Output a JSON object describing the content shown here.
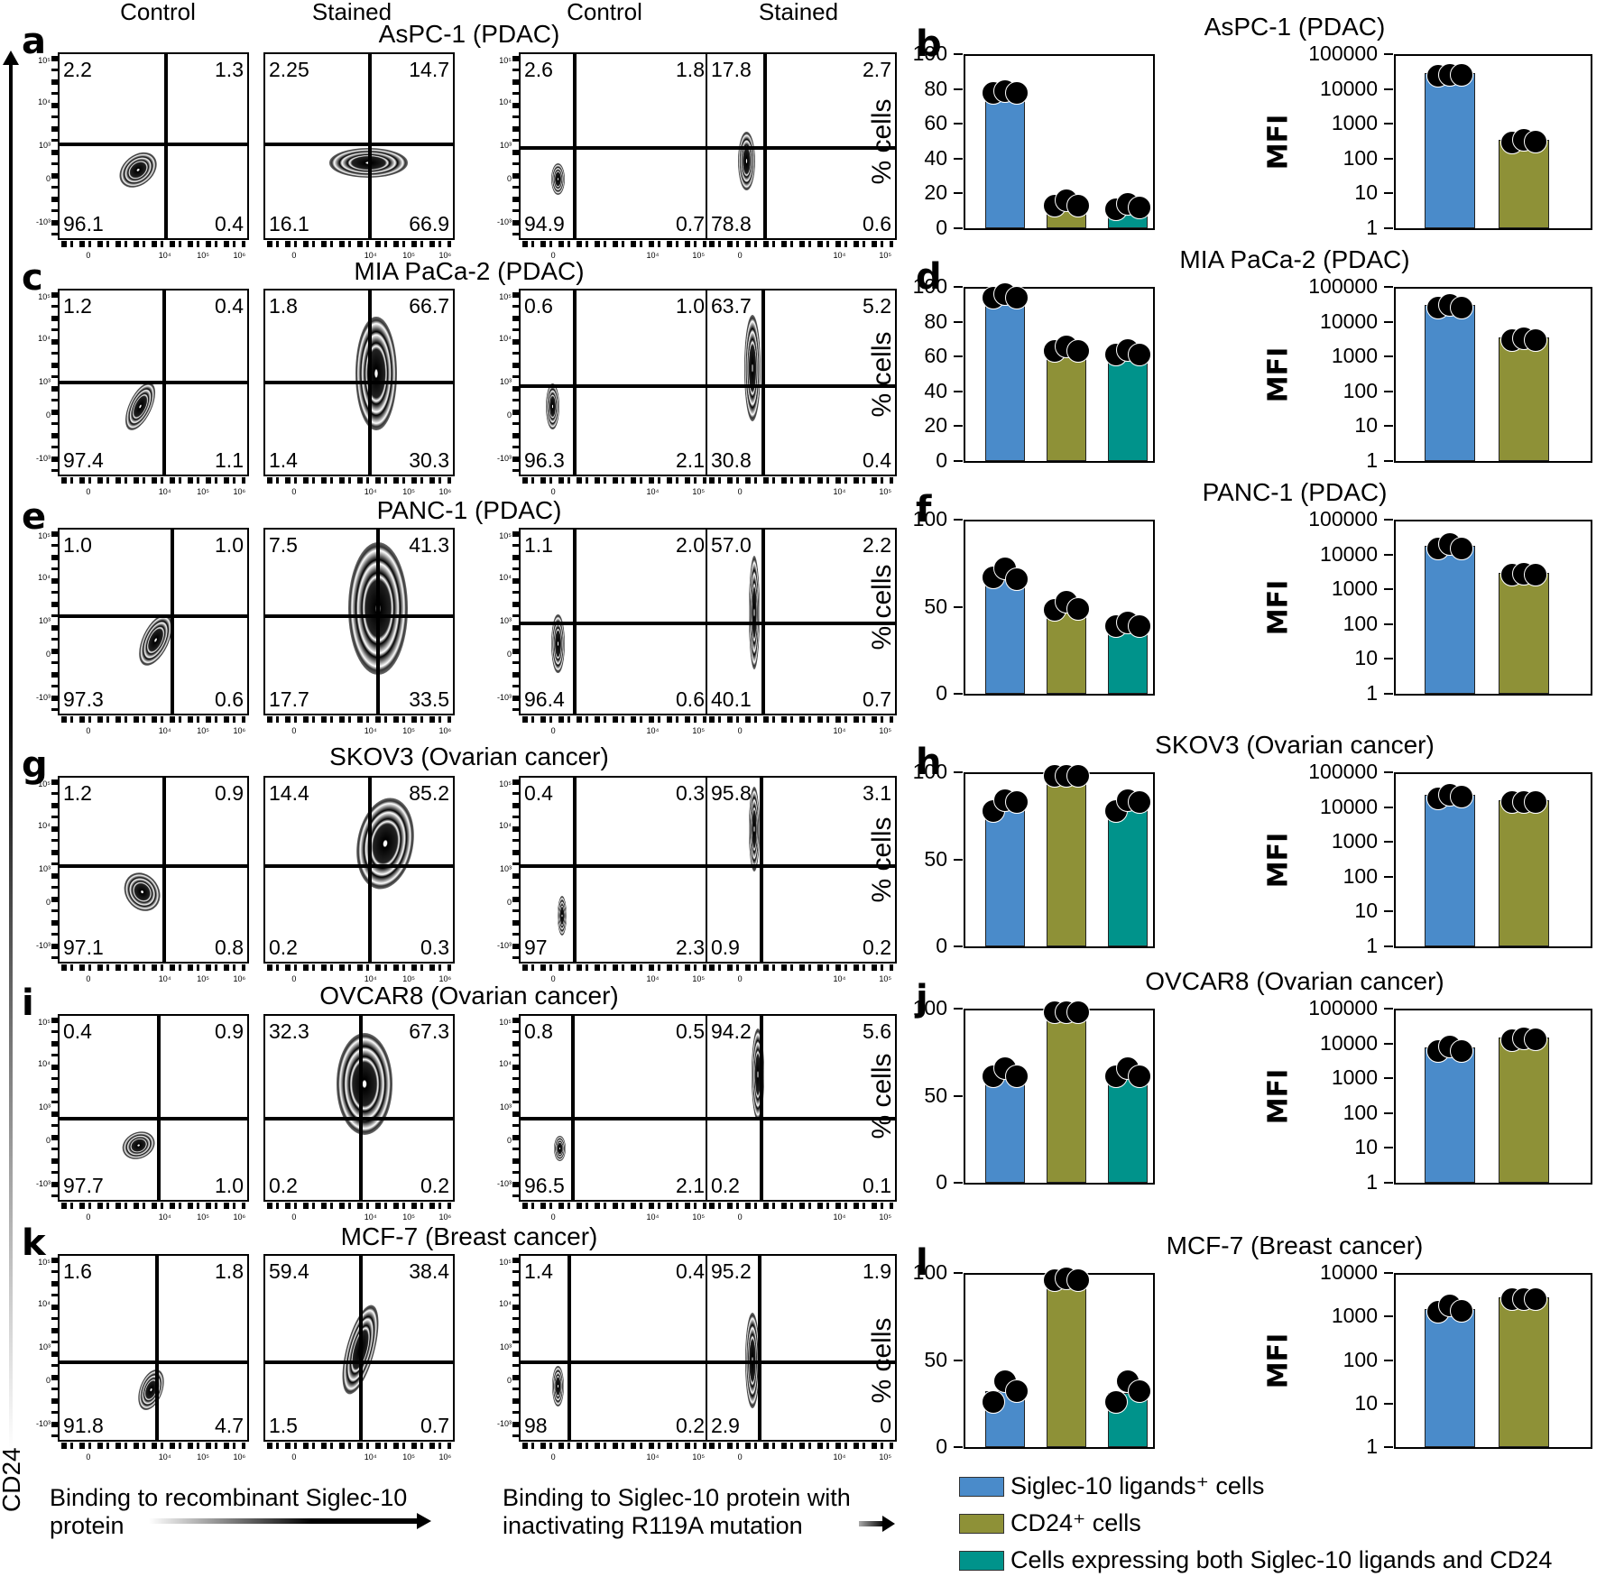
{
  "column_headers": [
    "Control",
    "Stained",
    "Control",
    "Stained"
  ],
  "y_axis_label": "CD24",
  "x_axis_labels": {
    "left": [
      "Binding to recombinant Siglec-10",
      "protein"
    ],
    "right": [
      "Binding to Siglec-10 protein with",
      "inactivating R119A mutation"
    ]
  },
  "flow_y_ticks": [
    "10⁵",
    "10⁴",
    "10³",
    "0",
    "-10³"
  ],
  "flow_x_ticks_a": [
    "0",
    "10⁴",
    "10⁵",
    "10⁶"
  ],
  "flow_x_ticks_b": [
    "0",
    "10⁴",
    "10⁵"
  ],
  "legend": [
    {
      "label": "Siglec-10 ligands⁺ cells",
      "color": "#4a8bca"
    },
    {
      "label": "CD24⁺ cells",
      "color": "#8e9137"
    },
    {
      "label": "Cells expressing both Siglec-10 ligands and CD24",
      "color": "#00938b"
    }
  ],
  "colors": {
    "blue": "#4a8bca",
    "olive": "#8e9137",
    "teal": "#00938b"
  },
  "rows": [
    {
      "flow_letter": "a",
      "bar_letter": "b",
      "title": "AsPC-1 (PDAC)",
      "flow": [
        {
          "tl": "2.2",
          "tr": "1.3",
          "bl": "96.1",
          "br": "0.4"
        },
        {
          "tl": "2.25",
          "tr": "14.7",
          "bl": "16.1",
          "br": "66.9"
        },
        {
          "tl": "2.6",
          "tr": "1.8",
          "bl": "94.9",
          "br": "0.7"
        },
        {
          "tl": "17.8",
          "tr": "2.7",
          "bl": "78.8",
          "br": "0.6"
        }
      ],
      "pct_ticks": [
        "100",
        "80",
        "60",
        "40",
        "20",
        "0"
      ],
      "mfi_ticks": [
        "100000",
        "10000",
        "1000",
        "100",
        "10",
        "1"
      ]
    },
    {
      "flow_letter": "c",
      "bar_letter": "d",
      "title": "MIA PaCa-2 (PDAC)",
      "flow": [
        {
          "tl": "1.2",
          "tr": "0.4",
          "bl": "97.4",
          "br": "1.1"
        },
        {
          "tl": "1.8",
          "tr": "66.7",
          "bl": "1.4",
          "br": "30.3"
        },
        {
          "tl": "0.6",
          "tr": "1.0",
          "bl": "96.3",
          "br": "2.1"
        },
        {
          "tl": "63.7",
          "tr": "5.2",
          "bl": "30.8",
          "br": "0.4"
        }
      ],
      "pct_ticks": [
        "100",
        "80",
        "60",
        "40",
        "20",
        "0"
      ],
      "mfi_ticks": [
        "100000",
        "10000",
        "1000",
        "100",
        "10",
        "1"
      ]
    },
    {
      "flow_letter": "e",
      "bar_letter": "f",
      "title": "PANC-1 (PDAC)",
      "flow": [
        {
          "tl": "1.0",
          "tr": "1.0",
          "bl": "97.3",
          "br": "0.6"
        },
        {
          "tl": "7.5",
          "tr": "41.3",
          "bl": "17.7",
          "br": "33.5"
        },
        {
          "tl": "1.1",
          "tr": "2.0",
          "bl": "96.4",
          "br": "0.6"
        },
        {
          "tl": "57.0",
          "tr": "2.2",
          "bl": "40.1",
          "br": "0.7"
        }
      ],
      "pct_ticks": [
        "100",
        "50",
        "0"
      ],
      "mfi_ticks": [
        "100000",
        "10000",
        "1000",
        "100",
        "10",
        "1"
      ]
    },
    {
      "flow_letter": "g",
      "bar_letter": "h",
      "title": "SKOV3 (Ovarian cancer)",
      "flow": [
        {
          "tl": "1.2",
          "tr": "0.9",
          "bl": "97.1",
          "br": "0.8"
        },
        {
          "tl": "14.4",
          "tr": "85.2",
          "bl": "0.2",
          "br": "0.3"
        },
        {
          "tl": "0.4",
          "tr": "0.3",
          "bl": "97",
          "br": "2.3"
        },
        {
          "tl": "95.8",
          "tr": "3.1",
          "bl": "0.9",
          "br": "0.2"
        }
      ],
      "pct_ticks": [
        "100",
        "50",
        "0"
      ],
      "mfi_ticks": [
        "100000",
        "10000",
        "1000",
        "100",
        "10",
        "1"
      ]
    },
    {
      "flow_letter": "i",
      "bar_letter": "j",
      "title": "OVCAR8 (Ovarian cancer)",
      "flow": [
        {
          "tl": "0.4",
          "tr": "0.9",
          "bl": "97.7",
          "br": "1.0"
        },
        {
          "tl": "32.3",
          "tr": "67.3",
          "bl": "0.2",
          "br": "0.2"
        },
        {
          "tl": "0.8",
          "tr": "0.5",
          "bl": "96.5",
          "br": "2.1"
        },
        {
          "tl": "94.2",
          "tr": "5.6",
          "bl": "0.2",
          "br": "0.1"
        }
      ],
      "pct_ticks": [
        "100",
        "50",
        "0"
      ],
      "mfi_ticks": [
        "100000",
        "10000",
        "1000",
        "100",
        "10",
        "1"
      ]
    },
    {
      "flow_letter": "k",
      "bar_letter": "l",
      "title": "MCF-7 (Breast cancer)",
      "flow": [
        {
          "tl": "1.6",
          "tr": "1.8",
          "bl": "91.8",
          "br": "4.7"
        },
        {
          "tl": "59.4",
          "tr": "38.4",
          "bl": "1.5",
          "br": "0.7"
        },
        {
          "tl": "1.4",
          "tr": "0.4",
          "bl": "98",
          "br": "0.2"
        },
        {
          "tl": "95.2",
          "tr": "1.9",
          "bl": "2.9",
          "br": "0"
        }
      ],
      "pct_ticks": [
        "100",
        "50",
        "0"
      ],
      "mfi_ticks": [
        "10000",
        "1000",
        "100",
        "10",
        "1"
      ]
    }
  ],
  "chart_data": [
    {
      "type": "bar",
      "title": "AsPC-1 (PDAC)",
      "ylabel": "% cells",
      "ylim": [
        0,
        100
      ],
      "categories": [
        "Siglec-10 ligands+ cells",
        "CD24+ cells",
        "Cells expressing both Siglec-10 ligands and CD24"
      ],
      "values": [
        79,
        16,
        14
      ],
      "points": [
        [
          79,
          80,
          79
        ],
        [
          14,
          17,
          14
        ],
        [
          12,
          15,
          13
        ]
      ]
    },
    {
      "type": "bar",
      "title": "AsPC-1 (PDAC)",
      "ylabel": "MFI",
      "yscale": "log",
      "ylim": [
        1,
        100000
      ],
      "categories": [
        "Siglec-10 ligands+ cells",
        "CD24+ cells"
      ],
      "values": [
        28000,
        350
      ],
      "points": [
        [
          27000,
          29000,
          28000
        ],
        [
          320,
          380,
          350
        ]
      ]
    },
    {
      "type": "bar",
      "title": "MIA PaCa-2 (PDAC)",
      "ylabel": "% cells",
      "ylim": [
        0,
        100
      ],
      "categories": [
        "Siglec-10 ligands+ cells",
        "CD24+ cells",
        "Cells expressing both Siglec-10 ligands and CD24"
      ],
      "values": [
        96,
        65,
        63
      ],
      "points": [
        [
          95,
          97,
          95
        ],
        [
          64,
          67,
          64
        ],
        [
          62,
          65,
          62
        ]
      ]
    },
    {
      "type": "bar",
      "title": "MIA PaCa-2 (PDAC)",
      "ylabel": "MFI",
      "yscale": "log",
      "ylim": [
        1,
        100000
      ],
      "categories": [
        "Siglec-10 ligands+ cells",
        "CD24+ cells"
      ],
      "values": [
        30000,
        3500
      ],
      "points": [
        [
          28000,
          35000,
          28000
        ],
        [
          3300,
          3700,
          3400
        ]
      ]
    },
    {
      "type": "bar",
      "title": "PANC-1 (PDAC)",
      "ylabel": "% cells",
      "ylim": [
        0,
        100
      ],
      "categories": [
        "Siglec-10 ligands+ cells",
        "CD24+ cells",
        "Cells expressing both Siglec-10 ligands and CD24"
      ],
      "values": [
        68,
        51,
        41
      ],
      "points": [
        [
          68,
          73,
          67
        ],
        [
          49,
          54,
          50
        ],
        [
          40,
          42,
          40
        ]
      ]
    },
    {
      "type": "bar",
      "title": "PANC-1 (PDAC)",
      "ylabel": "MFI",
      "yscale": "log",
      "ylim": [
        1,
        100000
      ],
      "categories": [
        "Siglec-10 ligands+ cells",
        "CD24+ cells"
      ],
      "values": [
        18000,
        3000
      ],
      "points": [
        [
          17000,
          22000,
          17000
        ],
        [
          2900,
          3200,
          3000
        ]
      ]
    },
    {
      "type": "bar",
      "title": "SKOV3 (Ovarian cancer)",
      "ylabel": "% cells",
      "ylim": [
        0,
        100
      ],
      "categories": [
        "Siglec-10 ligands+ cells",
        "CD24+ cells",
        "Cells expressing both Siglec-10 ligands and CD24"
      ],
      "values": [
        82,
        99,
        82
      ],
      "points": [
        [
          79,
          85,
          84
        ],
        [
          99,
          99,
          99
        ],
        [
          79,
          85,
          84
        ]
      ]
    },
    {
      "type": "bar",
      "title": "SKOV3 (Ovarian cancer)",
      "ylabel": "MFI",
      "yscale": "log",
      "ylim": [
        1,
        100000
      ],
      "categories": [
        "Siglec-10 ligands+ cells",
        "CD24+ cells"
      ],
      "values": [
        22000,
        16000
      ],
      "points": [
        [
          20000,
          26000,
          22000
        ],
        [
          16000,
          16000,
          16000
        ]
      ]
    },
    {
      "type": "bar",
      "title": "OVCAR8 (Ovarian cancer)",
      "ylabel": "% cells",
      "ylim": [
        0,
        100
      ],
      "categories": [
        "Siglec-10 ligands+ cells",
        "CD24+ cells",
        "Cells expressing both Siglec-10 ligands and CD24"
      ],
      "values": [
        63,
        99,
        63
      ],
      "points": [
        [
          62,
          67,
          62
        ],
        [
          99,
          99,
          99
        ],
        [
          62,
          67,
          62
        ]
      ]
    },
    {
      "type": "bar",
      "title": "OVCAR8 (Ovarian cancer)",
      "ylabel": "MFI",
      "yscale": "log",
      "ylim": [
        1,
        100000
      ],
      "categories": [
        "Siglec-10 ligands+ cells",
        "CD24+ cells"
      ],
      "values": [
        7500,
        15000
      ],
      "points": [
        [
          7000,
          9000,
          7000
        ],
        [
          14000,
          16000,
          15000
        ]
      ]
    },
    {
      "type": "bar",
      "title": "MCF-7 (Breast cancer)",
      "ylabel": "% cells",
      "ylim": [
        0,
        100
      ],
      "categories": [
        "Siglec-10 ligands+ cells",
        "CD24+ cells",
        "Cells expressing both Siglec-10 ligands and CD24"
      ],
      "values": [
        32,
        97,
        31
      ],
      "points": [
        [
          27,
          39,
          33
        ],
        [
          97,
          98,
          97
        ],
        [
          27,
          39,
          33
        ]
      ]
    },
    {
      "type": "bar",
      "title": "MCF-7 (Breast cancer)",
      "ylabel": "MFI",
      "yscale": "log",
      "ylim": [
        1,
        10000
      ],
      "categories": [
        "Siglec-10 ligands+ cells",
        "CD24+ cells"
      ],
      "values": [
        1500,
        2800
      ],
      "points": [
        [
          1400,
          2000,
          1500
        ],
        [
          2800,
          2800,
          2800
        ]
      ]
    }
  ]
}
